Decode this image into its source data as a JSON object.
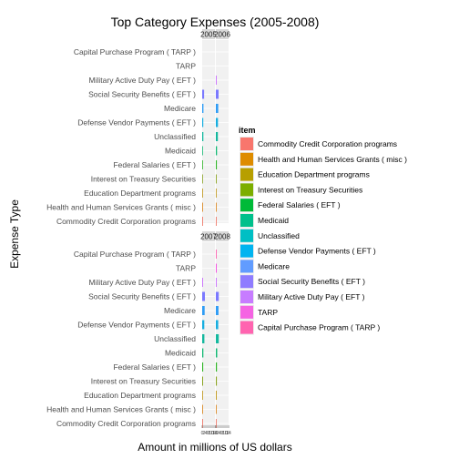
{
  "chart_data": {
    "type": "bar",
    "orientation": "horizontal",
    "faceted": true,
    "title": "Top Category Expenses (2005-2008)",
    "xlabel": "Amount in millions of US dollars",
    "ylabel": "Expense Type",
    "categories": [
      "Capital Purchase Program ( TARP )",
      "TARP",
      "Military Active Duty Pay ( EFT )",
      "Social Security Benefits ( EFT )",
      "Medicare",
      "Defense Vendor Payments ( EFT )",
      "Unclassified",
      "Medicaid",
      "Federal Salaries ( EFT )",
      "Interest on Treasury Securities",
      "Education Department programs",
      "Health and Human Services Grants ( misc )",
      "Commodity Credit Corporation programs"
    ],
    "legend": {
      "title": "item",
      "position": "right",
      "items": [
        {
          "label": "Commodity Credit Corporation programs",
          "color": "#F8766D"
        },
        {
          "label": "Health and Human Services Grants ( misc )",
          "color": "#DE8C00"
        },
        {
          "label": "Education Department programs",
          "color": "#B79F00"
        },
        {
          "label": "Interest on Treasury Securities",
          "color": "#7CAE00"
        },
        {
          "label": "Federal Salaries ( EFT )",
          "color": "#00BA38"
        },
        {
          "label": "Medicaid",
          "color": "#00C08B"
        },
        {
          "label": "Unclassified",
          "color": "#00BFC4"
        },
        {
          "label": "Defense Vendor Payments ( EFT )",
          "color": "#00B4F0"
        },
        {
          "label": "Medicare",
          "color": "#619CFF"
        },
        {
          "label": "Social Security Benefits ( EFT )",
          "color": "#8F7CFF"
        },
        {
          "label": "Military Active Duty Pay ( EFT )",
          "color": "#C77CFF"
        },
        {
          "label": "TARP",
          "color": "#F564E3"
        },
        {
          "label": "Capital Purchase Program ( TARP )",
          "color": "#FF64B0"
        }
      ]
    },
    "colors": {
      "Capital Purchase Program ( TARP )": "#FF4FA8",
      "TARP": "#F545E0",
      "Military Active Duty Pay ( EFT )": "#C45CFF",
      "Social Security Benefits ( EFT )": "#7B79FF",
      "Medicare": "#2E9CF5",
      "Defense Vendor Payments ( EFT )": "#17AEE0",
      "Unclassified": "#14B89E",
      "Medicaid": "#12B873",
      "Federal Salaries ( EFT )": "#2DB524",
      "Interest on Treasury Securities": "#8AA321",
      "Education Department programs": "#BF9410",
      "Health and Human Services Grants ( misc )": "#D97F0E",
      "Commodity Credit Corporation programs": "#EE6A5A"
    },
    "xlim": [
      0,
      14
    ],
    "grid": true,
    "panels": [
      {
        "label": "2005",
        "values": {
          "Capital Purchase Program ( TARP )": 0,
          "TARP": 0,
          "Military Active Duty Pay ( EFT )": 0,
          "Social Security Benefits ( EFT )": 2.1,
          "Medicare": 1.4,
          "Defense Vendor Payments ( EFT )": 1.2,
          "Unclassified": 1.3,
          "Medicaid": 0.8,
          "Federal Salaries ( EFT )": 0.6,
          "Interest on Treasury Securities": 0.5,
          "Education Department programs": 0.4,
          "Health and Human Services Grants ( misc )": 0.3,
          "Commodity Credit Corporation programs": 0.1
        }
      },
      {
        "label": "2006",
        "values": {
          "Capital Purchase Program ( TARP )": 0,
          "TARP": 0,
          "Military Active Duty Pay ( EFT )": 0.5,
          "Social Security Benefits ( EFT )": 3.0,
          "Medicare": 2.6,
          "Defense Vendor Payments ( EFT )": 2.3,
          "Unclassified": 2.2,
          "Medicaid": 1.3,
          "Federal Salaries ( EFT )": 1.1,
          "Interest on Treasury Securities": 0.9,
          "Education Department programs": 0.7,
          "Health and Human Services Grants ( misc )": 0.3,
          "Commodity Credit Corporation programs": 0.1
        }
      },
      {
        "label": "2007",
        "values": {
          "Capital Purchase Program ( TARP )": 0,
          "TARP": 0,
          "Military Active Duty Pay ( EFT )": 0.5,
          "Social Security Benefits ( EFT )": 3.0,
          "Medicare": 2.7,
          "Defense Vendor Payments ( EFT )": 2.3,
          "Unclassified": 2.4,
          "Medicaid": 1.3,
          "Federal Salaries ( EFT )": 1.1,
          "Interest on Treasury Securities": 1.0,
          "Education Department programs": 0.8,
          "Health and Human Services Grants ( misc )": 0.3,
          "Commodity Credit Corporation programs": 0.1
        }
      },
      {
        "label": "2008",
        "values": {
          "Capital Purchase Program ( TARP )": 0.6,
          "TARP": 0.9,
          "Military Active Duty Pay ( EFT )": 0.2,
          "Social Security Benefits ( EFT )": 3.2,
          "Medicare": 2.9,
          "Defense Vendor Payments ( EFT )": 2.6,
          "Unclassified": 3.2,
          "Medicaid": 1.5,
          "Federal Salaries ( EFT )": 1.2,
          "Interest on Treasury Securities": 1.1,
          "Education Department programs": 0.9,
          "Health and Human Services Grants ( misc )": 0.4,
          "Commodity Credit Corporation programs": 0.1
        }
      }
    ]
  }
}
